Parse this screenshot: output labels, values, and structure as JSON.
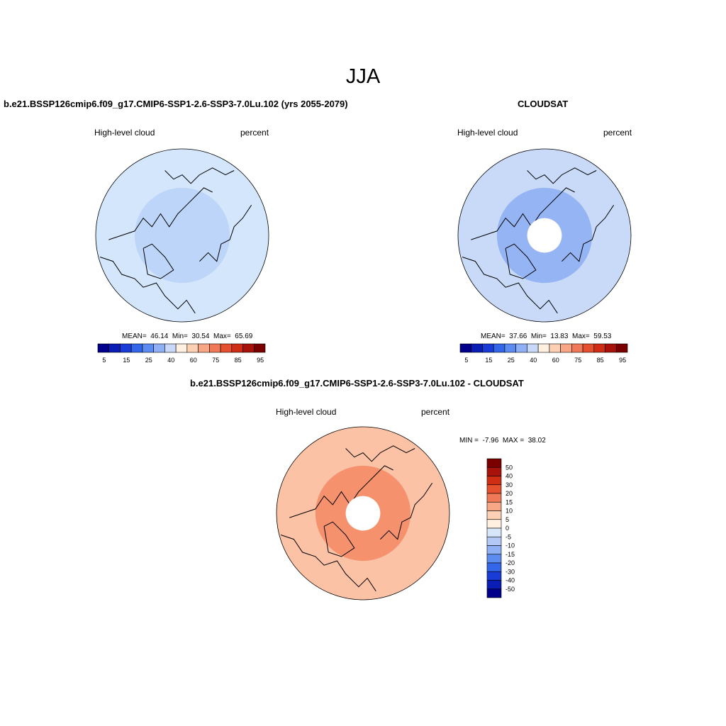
{
  "title": "JJA",
  "panels": [
    {
      "title": "b.e21.BSSP126cmip6.f09_g17.CMIP6-SSP1-2.6-SSP3-7.0Lu.102 (yrs 2055-2079)",
      "left_label": "High-level cloud",
      "right_label": "percent",
      "stats": {
        "mean_label": "MEAN=",
        "mean": "46.14",
        "min_label": "Min=",
        "min": "30.54",
        "max_label": "Max=",
        "max": "65.69"
      }
    },
    {
      "title": "CLOUDSAT",
      "left_label": "High-level cloud",
      "right_label": "percent",
      "stats": {
        "mean_label": "MEAN=",
        "mean": "37.66",
        "min_label": "Min=",
        "min": "13.83",
        "max_label": "Max=",
        "max": "59.53"
      }
    },
    {
      "title": "b.e21.BSSP126cmip6.f09_g17.CMIP6-SSP1-2.6-SSP3-7.0Lu.102 - CLOUDSAT",
      "left_label": "High-level cloud",
      "right_label": "percent",
      "stats": {
        "min_label": "MIN =",
        "min": "-7.96",
        "max_label": "MAX =",
        "max": "38.02"
      }
    }
  ],
  "colorbar_abs": {
    "colors": [
      "#00008b",
      "#0a1db5",
      "#1a3cd6",
      "#3366e8",
      "#5c8cf0",
      "#8fb0f5",
      "#c8d8f8",
      "#fff0e0",
      "#fcd0b4",
      "#f7a786",
      "#f07a58",
      "#e5502f",
      "#cf2d14",
      "#a8120a",
      "#7a0000"
    ],
    "tick_labels": [
      "5",
      "15",
      "25",
      "40",
      "60",
      "75",
      "85",
      "95"
    ]
  },
  "colorbar_diff": {
    "colors": [
      "#00008b",
      "#0a1db5",
      "#1a3cd6",
      "#3366e8",
      "#5c8cf0",
      "#8fb0f5",
      "#b4c8f5",
      "#d8e6fa",
      "#fff0e0",
      "#fcd0b4",
      "#f7a786",
      "#f07a58",
      "#e5502f",
      "#cf2d14",
      "#a8120a",
      "#7a0000"
    ],
    "tick_labels": [
      "50",
      "40",
      "30",
      "20",
      "15",
      "10",
      "5",
      "0",
      "-5",
      "-10",
      "-15",
      "-20",
      "-30",
      "-40",
      "-50"
    ]
  },
  "maps": [
    {
      "base": "#d4e6fc",
      "ring": "#b8d1f7",
      "pole_hole": false
    },
    {
      "base": "#c8daf8",
      "ring": "#8cadf2",
      "pole_hole": true
    },
    {
      "base": "#fcc2a6",
      "ring": "#f38a63",
      "pole_hole": true
    }
  ]
}
